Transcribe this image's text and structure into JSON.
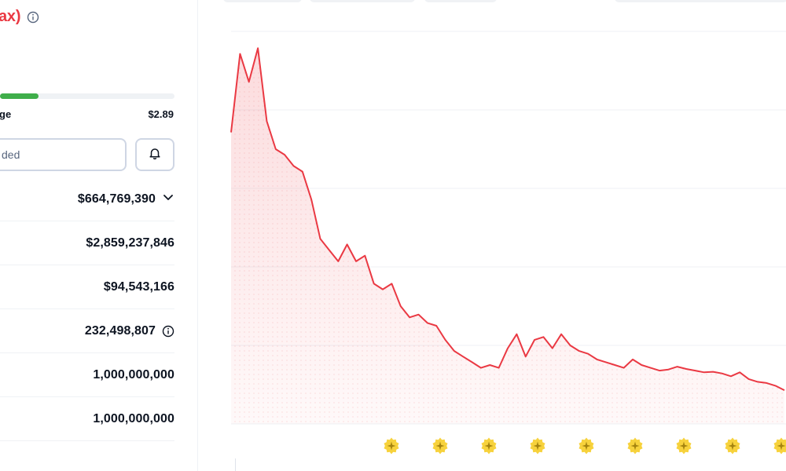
{
  "coin": {
    "title_suffix": "ax)"
  },
  "price_range": {
    "low_label": "ge",
    "high_label": "$2.89",
    "fill_fraction": 0.22
  },
  "watchlist": {
    "button_label": "ded"
  },
  "stats": [
    {
      "value": "$664,769,390",
      "icon": "chevron-down-icon"
    },
    {
      "value": "$2,859,237,846"
    },
    {
      "value": "$94,543,166"
    },
    {
      "value": "232,498,807",
      "icon": "info-icon"
    },
    {
      "value": "1,000,000,000"
    },
    {
      "value": "1,000,000,000"
    }
  ],
  "colors": {
    "price_line": "#ea3943",
    "range_fill": "#3fae4a",
    "badge": "#f7d23c"
  },
  "chart_data": {
    "type": "area",
    "title": "",
    "xlabel": "",
    "ylabel": "",
    "grid": true,
    "series": [
      {
        "values": [
          5.2,
          6.6,
          6.1,
          6.7,
          5.4,
          4.9,
          4.8,
          4.6,
          4.5,
          4.0,
          3.3,
          3.1,
          2.9,
          3.2,
          2.9,
          3.0,
          2.5,
          2.4,
          2.5,
          2.1,
          1.9,
          1.95,
          1.8,
          1.75,
          1.5,
          1.3,
          1.2,
          1.1,
          1.0,
          1.05,
          1.0,
          1.35,
          1.6,
          1.2,
          1.5,
          1.55,
          1.35,
          1.6,
          1.4,
          1.3,
          1.25,
          1.15,
          1.1,
          1.05,
          1.0,
          1.15,
          1.05,
          1.0,
          0.95,
          0.97,
          1.02,
          0.98,
          0.95,
          0.92,
          0.93,
          0.9,
          0.85,
          0.92,
          0.8,
          0.75,
          0.73,
          0.68,
          0.6
        ]
      }
    ],
    "event_markers": 9
  }
}
